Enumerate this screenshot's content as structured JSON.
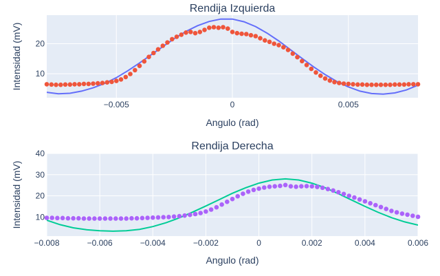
{
  "colors": {
    "plot_bg": "#e5ecf6",
    "grid": "#ffffff",
    "text": "#2a3f5f",
    "top_line": "#636efa",
    "top_points": "#ef553b",
    "bottom_line": "#00cc96",
    "bottom_points": "#ab63fa"
  },
  "chart_data": [
    {
      "type": "scatter",
      "title": "Rendija Izquierda",
      "xlabel": "Angulo (rad)",
      "ylabel": "Intensidad (mV)",
      "xlim": [
        -0.008,
        0.008
      ],
      "ylim": [
        2,
        29.5
      ],
      "xticks": [
        -0.005,
        0,
        0.005
      ],
      "xtick_labels": [
        "−0.005",
        "0",
        "0.005"
      ],
      "yticks": [
        10,
        20
      ],
      "ytick_labels": [
        "10",
        "20"
      ],
      "grid": true,
      "series": [
        {
          "mode": "lines",
          "x": [
            -0.008,
            -0.0075,
            -0.007,
            -0.0065,
            -0.006,
            -0.0055,
            -0.005,
            -0.0045,
            -0.004,
            -0.0035,
            -0.003,
            -0.0025,
            -0.002,
            -0.0015,
            -0.001,
            -0.0005,
            0,
            0.0005,
            0.001,
            0.0015,
            0.002,
            0.0025,
            0.003,
            0.0035,
            0.004,
            0.0045,
            0.005,
            0.0055,
            0.006,
            0.0065,
            0.007,
            0.0075,
            0.008
          ],
          "y": [
            3.8,
            3.3,
            3.5,
            4.2,
            5.3,
            6.8,
            8.7,
            11.0,
            13.6,
            16.3,
            19.0,
            21.7,
            24.1,
            26.0,
            27.4,
            28.2,
            28.2,
            27.3,
            25.7,
            23.5,
            20.9,
            18.0,
            15.1,
            12.3,
            9.7,
            7.4,
            5.6,
            4.2,
            3.4,
            3.2,
            3.6,
            4.6,
            6.2
          ]
        },
        {
          "mode": "markers",
          "x": [
            -0.008,
            -0.0078,
            -0.0076,
            -0.0074,
            -0.0072,
            -0.007,
            -0.0068,
            -0.0066,
            -0.0064,
            -0.0062,
            -0.006,
            -0.0058,
            -0.0056,
            -0.0054,
            -0.0052,
            -0.005,
            -0.0048,
            -0.0046,
            -0.0044,
            -0.0042,
            -0.004,
            -0.0038,
            -0.0036,
            -0.0034,
            -0.0032,
            -0.003,
            -0.0028,
            -0.0026,
            -0.0024,
            -0.0022,
            -0.002,
            -0.0018,
            -0.0016,
            -0.0014,
            -0.0012,
            -0.001,
            -0.0008,
            -0.0006,
            -0.0004,
            -0.0002,
            0,
            0.0002,
            0.0004,
            0.0006,
            0.0008,
            0.001,
            0.0012,
            0.0014,
            0.0016,
            0.0018,
            0.002,
            0.0022,
            0.0024,
            0.0026,
            0.0028,
            0.003,
            0.0032,
            0.0034,
            0.0036,
            0.0038,
            0.004,
            0.0042,
            0.0044,
            0.0046,
            0.0048,
            0.005,
            0.0052,
            0.0054,
            0.0056,
            0.0058,
            0.006,
            0.0062,
            0.0064,
            0.0066,
            0.0068,
            0.007,
            0.0072,
            0.0074,
            0.0076,
            0.0078,
            0.008
          ],
          "y": [
            6.5,
            6.4,
            6.3,
            6.3,
            6.4,
            6.4,
            6.5,
            6.5,
            6.6,
            6.6,
            6.7,
            6.8,
            6.9,
            7.1,
            7.3,
            7.6,
            8.1,
            8.9,
            9.9,
            11.2,
            12.6,
            14.1,
            15.6,
            16.9,
            18.1,
            19.3,
            20.4,
            21.5,
            22.3,
            23.0,
            23.7,
            23.9,
            23.5,
            23.9,
            24.6,
            25.3,
            25.5,
            25.3,
            25.5,
            25.0,
            23.9,
            23.5,
            23.3,
            23.2,
            22.8,
            22.5,
            21.8,
            21.1,
            20.6,
            20.0,
            19.5,
            18.8,
            17.9,
            16.7,
            15.5,
            14.2,
            12.9,
            11.6,
            10.4,
            9.3,
            8.4,
            7.7,
            7.2,
            6.9,
            6.7,
            6.6,
            6.5,
            6.4,
            6.4,
            6.3,
            6.3,
            6.3,
            6.3,
            6.3,
            6.3,
            6.4,
            6.4,
            6.4,
            6.5,
            6.5,
            6.5
          ]
        }
      ]
    },
    {
      "type": "scatter",
      "title": "Rendija Derecha",
      "xlabel": "Angulo (rad)",
      "ylabel": "Intensidad (mV)",
      "xlim": [
        -0.008,
        0.006
      ],
      "ylim": [
        1,
        40
      ],
      "xticks": [
        -0.008,
        -0.006,
        -0.004,
        -0.002,
        0,
        0.002,
        0.004,
        0.006
      ],
      "xtick_labels": [
        "−0.008",
        "−0.006",
        "−0.004",
        "−0.002",
        "0",
        "0.002",
        "0.004",
        "0.006"
      ],
      "yticks": [
        10,
        20,
        30,
        40
      ],
      "ytick_labels": [
        "10",
        "20",
        "30",
        "40"
      ],
      "grid": true,
      "series": [
        {
          "mode": "lines",
          "x": [
            -0.008,
            -0.0075,
            -0.007,
            -0.0065,
            -0.006,
            -0.0055,
            -0.005,
            -0.0045,
            -0.004,
            -0.0035,
            -0.003,
            -0.0025,
            -0.002,
            -0.0015,
            -0.001,
            -0.0005,
            0,
            0.0005,
            0.001,
            0.0015,
            0.002,
            0.0025,
            0.003,
            0.0035,
            0.004,
            0.0045,
            0.005,
            0.0055,
            0.006
          ],
          "y": [
            8.5,
            6.4,
            4.9,
            4.0,
            3.5,
            3.3,
            3.5,
            4.2,
            5.5,
            7.3,
            9.6,
            12.3,
            15.2,
            18.2,
            21.2,
            23.8,
            26.0,
            27.5,
            28.0,
            27.5,
            26.0,
            23.8,
            21.0,
            18.0,
            15.0,
            12.2,
            9.7,
            7.7,
            6.2
          ]
        },
        {
          "mode": "markers",
          "x": [
            -0.008,
            -0.0078,
            -0.0076,
            -0.0074,
            -0.0072,
            -0.007,
            -0.0068,
            -0.0066,
            -0.0064,
            -0.0062,
            -0.006,
            -0.0058,
            -0.0056,
            -0.0054,
            -0.0052,
            -0.005,
            -0.0048,
            -0.0046,
            -0.0044,
            -0.0042,
            -0.004,
            -0.0038,
            -0.0036,
            -0.0034,
            -0.0032,
            -0.003,
            -0.0028,
            -0.0026,
            -0.0024,
            -0.0022,
            -0.002,
            -0.0018,
            -0.0016,
            -0.0014,
            -0.0012,
            -0.001,
            -0.0008,
            -0.0006,
            -0.0004,
            -0.0002,
            0,
            0.0002,
            0.0004,
            0.0006,
            0.0008,
            0.001,
            0.0012,
            0.0014,
            0.0016,
            0.0018,
            0.002,
            0.0022,
            0.0024,
            0.0026,
            0.0028,
            0.003,
            0.0032,
            0.0034,
            0.0036,
            0.0038,
            0.004,
            0.0042,
            0.0044,
            0.0046,
            0.0048,
            0.005,
            0.0052,
            0.0054,
            0.0056,
            0.0058,
            0.006
          ],
          "y": [
            9.6,
            9.6,
            9.5,
            9.5,
            9.4,
            9.4,
            9.4,
            9.3,
            9.3,
            9.3,
            9.3,
            9.3,
            9.3,
            9.3,
            9.3,
            9.3,
            9.4,
            9.4,
            9.5,
            9.6,
            9.7,
            9.8,
            9.9,
            10.0,
            10.2,
            10.4,
            10.7,
            11.0,
            11.4,
            11.9,
            12.6,
            13.5,
            14.6,
            15.9,
            17.2,
            18.5,
            19.8,
            21.0,
            22.0,
            22.8,
            23.4,
            23.9,
            24.3,
            24.5,
            24.7,
            25.1,
            24.5,
            24.3,
            24.5,
            24.6,
            24.5,
            24.2,
            23.8,
            23.2,
            22.5,
            21.7,
            20.9,
            20.0,
            19.2,
            18.3,
            17.4,
            16.5,
            15.6,
            14.7,
            13.8,
            12.9,
            12.2,
            11.6,
            11.1,
            10.6,
            10.1
          ]
        }
      ]
    }
  ]
}
